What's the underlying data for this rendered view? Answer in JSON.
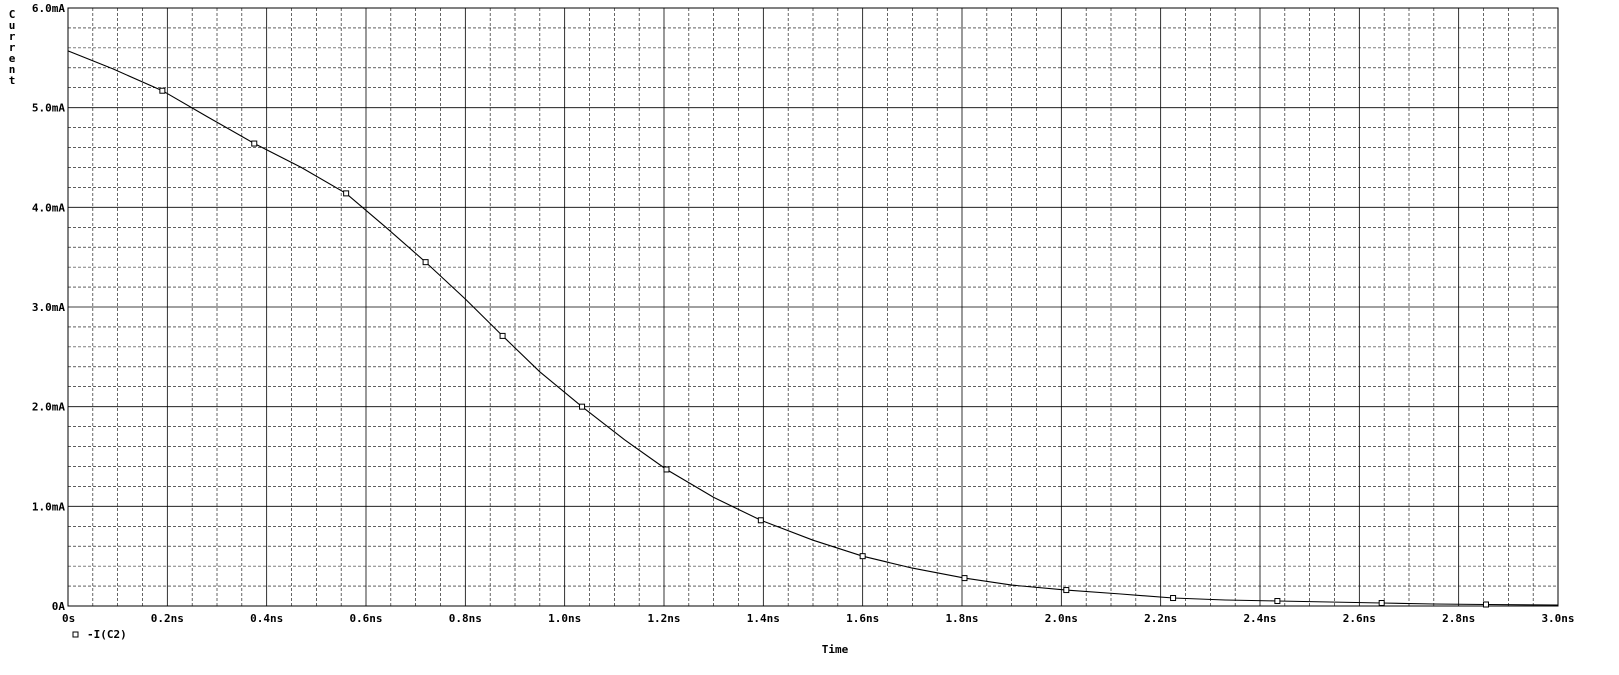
{
  "chart_data": {
    "type": "line",
    "title": "",
    "xlabel": "Time",
    "ylabel": "Current",
    "xlim": [
      0,
      3.0
    ],
    "ylim": [
      0,
      6.0
    ],
    "x_unit": "ns",
    "y_unit": "mA",
    "grid": true,
    "x_ticks": [
      0,
      0.2,
      0.4,
      0.6,
      0.8,
      1.0,
      1.2,
      1.4,
      1.6,
      1.8,
      2.0,
      2.2,
      2.4,
      2.6,
      2.8,
      3.0
    ],
    "x_tick_labels": [
      "0s",
      "0.2ns",
      "0.4ns",
      "0.6ns",
      "0.8ns",
      "1.0ns",
      "1.2ns",
      "1.4ns",
      "1.6ns",
      "1.8ns",
      "2.0ns",
      "2.2ns",
      "2.4ns",
      "2.6ns",
      "2.8ns",
      "3.0ns"
    ],
    "y_ticks": [
      0,
      1.0,
      2.0,
      3.0,
      4.0,
      5.0,
      6.0
    ],
    "y_tick_labels": [
      "0A",
      "1.0mA",
      "2.0mA",
      "3.0mA",
      "4.0mA",
      "5.0mA",
      "6.0mA"
    ],
    "legend_position": "bottom-left",
    "series": [
      {
        "name": "-I(C2)",
        "color": "#000000",
        "marker": "square",
        "x": [
          0,
          0.09,
          0.19,
          0.28,
          0.375,
          0.47,
          0.56,
          0.64,
          0.72,
          0.8,
          0.875,
          0.95,
          1.035,
          1.12,
          1.205,
          1.3,
          1.395,
          1.5,
          1.6,
          1.7,
          1.805,
          1.9,
          2.01,
          2.12,
          2.225,
          2.33,
          2.435,
          2.54,
          2.645,
          2.75,
          2.855,
          3.0
        ],
        "y": [
          5.57,
          5.39,
          5.17,
          4.91,
          4.64,
          4.4,
          4.14,
          3.8,
          3.45,
          3.08,
          2.71,
          2.35,
          2.0,
          1.67,
          1.37,
          1.09,
          0.86,
          0.66,
          0.5,
          0.38,
          0.28,
          0.21,
          0.16,
          0.12,
          0.08,
          0.06,
          0.05,
          0.04,
          0.03,
          0.02,
          0.015,
          0.01
        ],
        "marker_x": [
          0.19,
          0.375,
          0.56,
          0.72,
          0.875,
          1.035,
          1.205,
          1.395,
          1.6,
          1.805,
          2.01,
          2.225,
          2.435,
          2.645,
          2.855
        ],
        "marker_y": [
          5.17,
          4.64,
          4.14,
          3.45,
          2.71,
          2.0,
          1.37,
          0.86,
          0.5,
          0.28,
          0.16,
          0.08,
          0.05,
          0.03,
          0.015
        ]
      }
    ]
  }
}
